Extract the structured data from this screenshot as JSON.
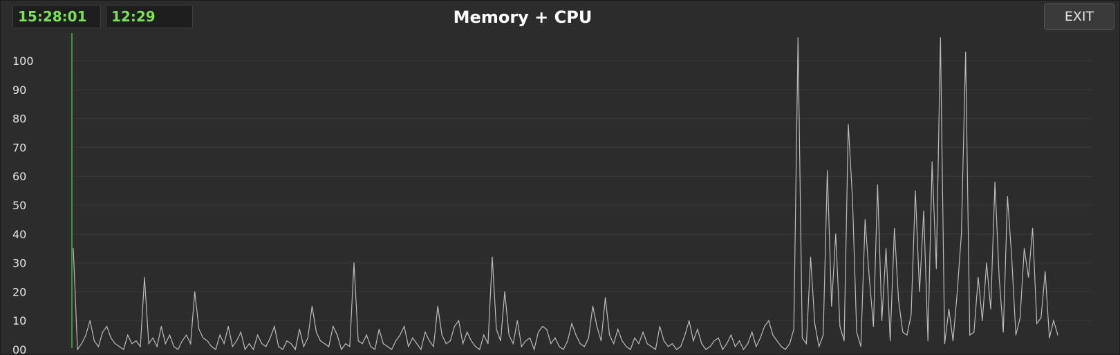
{
  "header": {
    "clock": "15:28:01",
    "elapsed": "12:29",
    "title": "Memory + CPU",
    "exit_label": "EXIT"
  },
  "colors": {
    "background": "#2c2c2c",
    "grid": "#3a3a3a",
    "series": "#bdbdbd",
    "cursor": "#3fbf3f",
    "badge_text": "#7be05a"
  },
  "chart_data": {
    "type": "line",
    "title": "Memory + CPU",
    "xlabel": "",
    "ylabel": "",
    "ylim": [
      0,
      110
    ],
    "yticks": [
      0,
      10,
      20,
      30,
      40,
      50,
      60,
      70,
      80,
      90,
      100
    ],
    "ytick_labels": [
      "00",
      "10",
      "20",
      "30",
      "40",
      "50",
      "60",
      "70",
      "80",
      "90",
      "100"
    ],
    "grid": true,
    "legend": "none",
    "cursor_x": 0,
    "x_count": 1000,
    "series": [
      {
        "values": [
          35,
          0,
          2,
          5,
          10,
          3,
          1,
          6,
          8,
          4,
          2,
          1,
          0,
          5,
          2,
          3,
          1,
          25,
          2,
          4,
          1,
          8,
          2,
          5,
          1,
          0,
          3,
          5,
          2,
          20,
          7,
          4,
          3,
          1,
          0,
          5,
          2,
          8,
          1,
          3,
          6,
          0,
          2,
          0,
          5,
          2,
          1,
          4,
          8,
          1,
          0,
          3,
          2,
          0,
          7,
          1,
          4,
          15,
          6,
          3,
          2,
          1,
          8,
          5,
          0,
          2,
          1,
          30,
          3,
          2,
          5,
          1,
          0,
          7,
          2,
          1,
          0,
          3,
          5,
          8,
          1,
          4,
          2,
          0,
          6,
          3,
          1,
          15,
          5,
          2,
          3,
          8,
          10,
          2,
          6,
          3,
          1,
          0,
          5,
          2,
          32,
          7,
          3,
          20,
          5,
          2,
          10,
          1,
          3,
          4,
          0,
          6,
          8,
          7,
          2,
          4,
          1,
          0,
          3,
          9,
          5,
          2,
          1,
          4,
          15,
          8,
          3,
          18,
          5,
          2,
          7,
          3,
          1,
          0,
          4,
          2,
          6,
          2,
          1,
          0,
          8,
          3,
          1,
          2,
          0,
          1,
          5,
          10,
          3,
          7,
          2,
          0,
          1,
          3,
          4,
          0,
          2,
          5,
          1,
          3,
          0,
          2,
          6,
          1,
          4,
          8,
          10,
          5,
          3,
          1,
          0,
          2,
          7,
          108,
          4,
          2,
          32,
          9,
          1,
          5,
          62,
          15,
          40,
          8,
          3,
          78,
          52,
          6,
          1,
          45,
          25,
          8,
          57,
          10,
          35,
          3,
          42,
          17,
          6,
          5,
          12,
          55,
          20,
          48,
          3,
          65,
          28,
          108,
          2,
          14,
          3,
          20,
          40,
          103,
          5,
          6,
          25,
          10,
          30,
          14,
          58,
          25,
          6,
          53,
          32,
          5,
          11,
          35,
          25,
          42,
          9,
          11,
          27,
          4,
          10,
          5
        ]
      }
    ]
  }
}
